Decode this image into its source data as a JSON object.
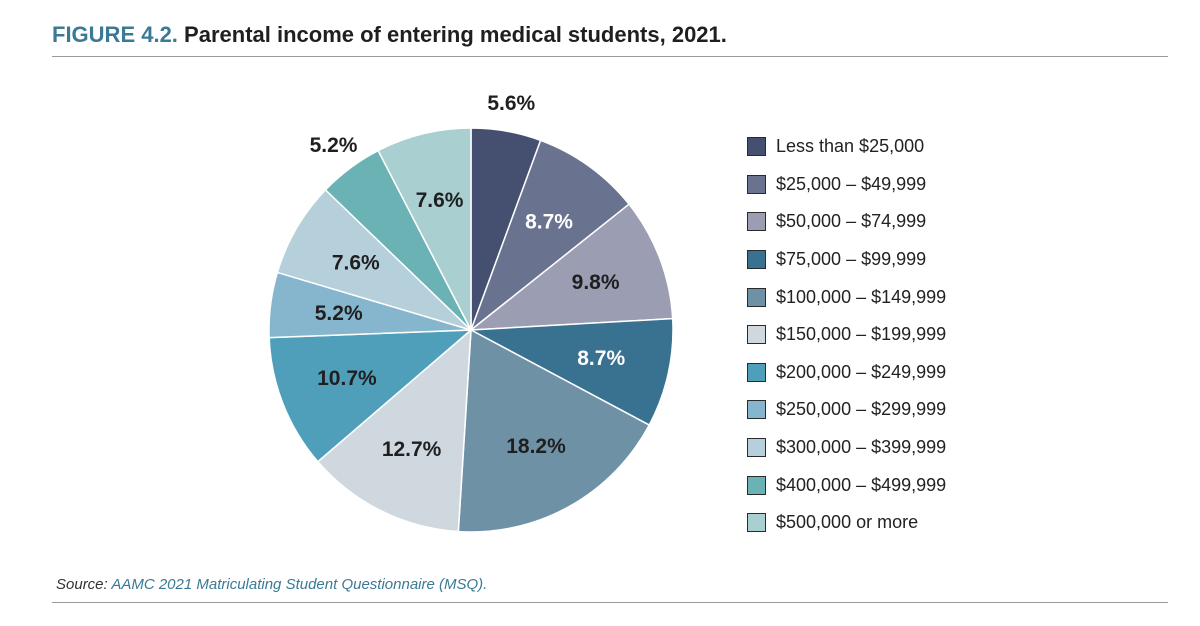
{
  "header": {
    "figure_label": "FIGURE 4.2.",
    "title": "Parental income of entering medical students, 2021."
  },
  "chart_data": {
    "type": "pie",
    "title": "Parental income of entering medical students, 2021.",
    "unit": "%",
    "start_angle_deg": 0,
    "direction": "clockwise",
    "legend_position": "right",
    "slices": [
      {
        "label": "Less than $25,000",
        "value": 5.6,
        "display": "5.6%",
        "color": "#454f70",
        "label_color": "#1f1f1f",
        "label_outside": true
      },
      {
        "label": "$25,000 – $49,999",
        "value": 8.7,
        "display": "8.7%",
        "color": "#69728f",
        "label_color": "#ffffff",
        "label_outside": false
      },
      {
        "label": "$50,000 – $74,999",
        "value": 9.8,
        "display": "9.8%",
        "color": "#9b9eb3",
        "label_color": "#1f1f1f",
        "label_outside": false
      },
      {
        "label": "$75,000 – $99,999",
        "value": 8.7,
        "display": "8.7%",
        "color": "#397290",
        "label_color": "#ffffff",
        "label_outside": false
      },
      {
        "label": "$100,000 – $149,999",
        "value": 18.2,
        "display": "18.2%",
        "color": "#6f91a6",
        "label_color": "#1f1f1f",
        "label_outside": false
      },
      {
        "label": "$150,000 – $199,999",
        "value": 12.7,
        "display": "12.7%",
        "color": "#d0d8df",
        "label_color": "#1f1f1f",
        "label_outside": false
      },
      {
        "label": "$200,000 – $249,999",
        "value": 10.7,
        "display": "10.7%",
        "color": "#4f9fbb",
        "label_color": "#1f1f1f",
        "label_outside": false
      },
      {
        "label": "$250,000 – $299,999",
        "value": 5.2,
        "display": "5.2%",
        "color": "#86b6cd",
        "label_color": "#1f1f1f",
        "label_outside": false
      },
      {
        "label": "$300,000 – $399,999",
        "value": 7.6,
        "display": "7.6%",
        "color": "#b5cfdb",
        "label_color": "#1f1f1f",
        "label_outside": false
      },
      {
        "label": "$400,000 – $499,999",
        "value": 5.2,
        "display": "5.2%",
        "color": "#6bb2b5",
        "label_color": "#1f1f1f",
        "label_outside": true
      },
      {
        "label": "$500,000 or more",
        "value": 7.6,
        "display": "7.6%",
        "color": "#a9cfd0",
        "label_color": "#1f1f1f",
        "label_outside": false
      }
    ]
  },
  "source": {
    "prefix": "Source:",
    "text": "AAMC 2021 Matriculating Student Questionnaire (MSQ)."
  }
}
